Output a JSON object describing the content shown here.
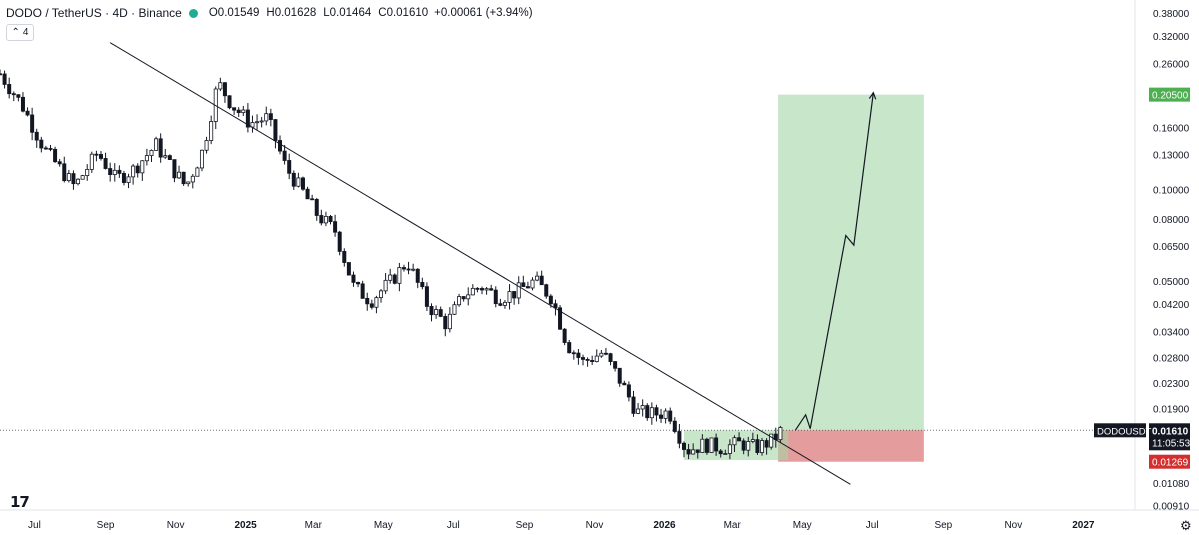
{
  "header": {
    "symbol": "DODO / TetherUS · 4D · Binance",
    "open_label": "O",
    "open": "0.01549",
    "high_label": "H",
    "high": "0.01628",
    "low_label": "L",
    "low": "0.01464",
    "close_label": "C",
    "close": "0.01610",
    "change": "+0.00061 (+3.94%)",
    "collapse_count": "4"
  },
  "colors": {
    "profit_zone": "#c8e6c9",
    "loss_zone": "#e08b8b",
    "tp_badge": "#4caf50",
    "sl_badge": "#d32f2f",
    "candle": "#131722",
    "symbol_badge": "#131722"
  },
  "labels": {
    "symbol_badge": "DODOUSDT",
    "price_badge": "0.01610",
    "countdown": "11:05:53",
    "target_price": "0.20500",
    "stop_price": "0.01269"
  },
  "chart_data": {
    "type": "candlestick",
    "y_scale": "log",
    "y_ticks": [
      "0.38000",
      "0.32000",
      "0.26000",
      "0.20500",
      "0.16000",
      "0.13000",
      "0.10000",
      "0.08000",
      "0.06500",
      "0.05000",
      "0.04200",
      "0.03400",
      "0.02800",
      "0.02300",
      "0.01900",
      "0.01610",
      "0.01269",
      "0.01080",
      "0.00910"
    ],
    "x_ticks": [
      "Jul",
      "Sep",
      "Nov",
      "2025",
      "Mar",
      "May",
      "Jul",
      "Sep",
      "Nov",
      "2026",
      "Mar",
      "May",
      "Jul",
      "Sep",
      "Nov",
      "2027"
    ],
    "year_ticks": [
      "2025",
      "2026",
      "2027"
    ],
    "x_range": [
      "2024-06-01",
      "2027-02-15"
    ],
    "y_range": [
      0.0088,
      0.42
    ],
    "last_price": 0.0161,
    "position": {
      "entry": 0.0161,
      "target": 0.205,
      "stop": 0.01269,
      "start_date": "2026-04-10",
      "end_date": "2026-08-15"
    },
    "trendline": [
      {
        "date": "2024-09-05",
        "price": 0.304
      },
      {
        "date": "2026-06-12",
        "price": 0.01069
      }
    ],
    "projection_path": [
      {
        "date": "2026-04-25",
        "price": 0.0161
      },
      {
        "date": "2026-05-04",
        "price": 0.0181
      },
      {
        "date": "2026-05-08",
        "price": 0.0163
      },
      {
        "date": "2026-06-08",
        "price": 0.0705
      },
      {
        "date": "2026-06-15",
        "price": 0.0655
      },
      {
        "date": "2026-07-02",
        "price": 0.208
      }
    ],
    "consolidation_box": {
      "start_date": "2026-01-18",
      "end_date": "2026-04-19",
      "top": 0.0161,
      "bottom": 0.01285
    },
    "close_series": [
      {
        "date": "2024-06-01",
        "price": 0.24
      },
      {
        "date": "2024-06-20",
        "price": 0.19
      },
      {
        "date": "2024-07-10",
        "price": 0.135
      },
      {
        "date": "2024-07-25",
        "price": 0.115
      },
      {
        "date": "2024-08-05",
        "price": 0.102
      },
      {
        "date": "2024-08-25",
        "price": 0.132
      },
      {
        "date": "2024-09-10",
        "price": 0.108
      },
      {
        "date": "2024-09-25",
        "price": 0.116
      },
      {
        "date": "2024-10-15",
        "price": 0.14
      },
      {
        "date": "2024-10-28",
        "price": 0.119
      },
      {
        "date": "2024-11-10",
        "price": 0.102
      },
      {
        "date": "2024-11-25",
        "price": 0.135
      },
      {
        "date": "2024-12-08",
        "price": 0.225
      },
      {
        "date": "2024-12-20",
        "price": 0.19
      },
      {
        "date": "2025-01-05",
        "price": 0.165
      },
      {
        "date": "2025-01-20",
        "price": 0.172
      },
      {
        "date": "2025-02-05",
        "price": 0.118
      },
      {
        "date": "2025-02-20",
        "price": 0.098
      },
      {
        "date": "2025-03-05",
        "price": 0.082
      },
      {
        "date": "2025-03-20",
        "price": 0.073
      },
      {
        "date": "2025-04-05",
        "price": 0.048
      },
      {
        "date": "2025-04-20",
        "price": 0.043
      },
      {
        "date": "2025-05-08",
        "price": 0.05
      },
      {
        "date": "2025-05-22",
        "price": 0.058
      },
      {
        "date": "2025-06-08",
        "price": 0.042
      },
      {
        "date": "2025-06-25",
        "price": 0.036
      },
      {
        "date": "2025-07-10",
        "price": 0.045
      },
      {
        "date": "2025-07-25",
        "price": 0.048
      },
      {
        "date": "2025-08-10",
        "price": 0.044
      },
      {
        "date": "2025-08-25",
        "price": 0.046
      },
      {
        "date": "2025-09-10",
        "price": 0.05
      },
      {
        "date": "2025-09-25",
        "price": 0.044
      },
      {
        "date": "2025-10-08",
        "price": 0.031
      },
      {
        "date": "2025-10-22",
        "price": 0.027
      },
      {
        "date": "2025-11-08",
        "price": 0.029
      },
      {
        "date": "2025-11-22",
        "price": 0.024
      },
      {
        "date": "2025-12-08",
        "price": 0.0185
      },
      {
        "date": "2025-12-22",
        "price": 0.0182
      },
      {
        "date": "2026-01-05",
        "price": 0.0185
      },
      {
        "date": "2026-01-20",
        "price": 0.0138
      },
      {
        "date": "2026-02-05",
        "price": 0.0145
      },
      {
        "date": "2026-02-20",
        "price": 0.0141
      },
      {
        "date": "2026-03-08",
        "price": 0.0146
      },
      {
        "date": "2026-03-22",
        "price": 0.0141
      },
      {
        "date": "2026-04-05",
        "price": 0.0149
      },
      {
        "date": "2026-04-13",
        "price": 0.0161
      }
    ]
  }
}
